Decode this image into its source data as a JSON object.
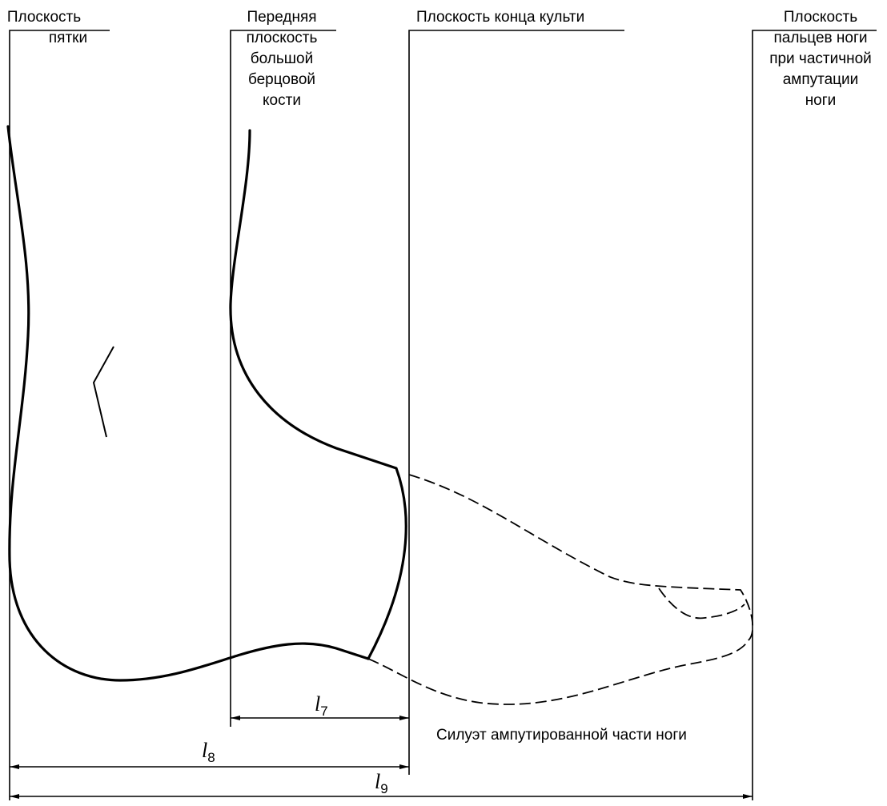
{
  "planes": [
    {
      "lines": [
        "Плоскость",
        "пятки"
      ]
    },
    {
      "lines": [
        "Передняя",
        "плоскость",
        "большой",
        "берцовой",
        "кости"
      ]
    },
    {
      "lines": [
        "Плоскость конца культи"
      ]
    },
    {
      "lines": [
        "Плоскость",
        "пальцев ноги",
        "при частичной",
        "ампутации",
        "ноги"
      ]
    }
  ],
  "dimensions": [
    {
      "symbol": "l",
      "subscript": "7"
    },
    {
      "symbol": "l",
      "subscript": "8"
    },
    {
      "symbol": "l",
      "subscript": "9"
    }
  ],
  "silhouette_label": "Силуэт ампутированной части ноги"
}
